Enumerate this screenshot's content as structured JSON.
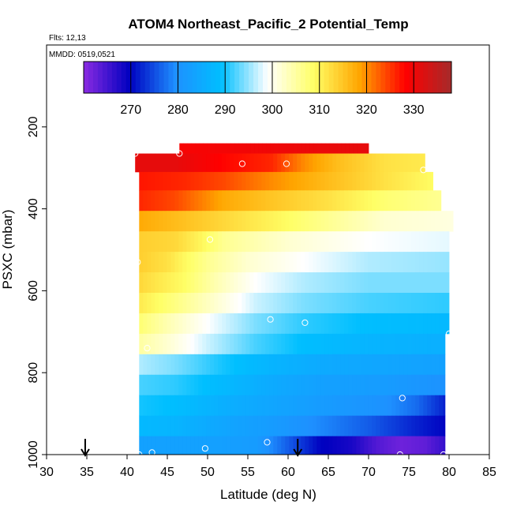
{
  "chart_data": {
    "type": "heatmap",
    "title": "ATOM4 Northeast_Pacific_2 Potential_Temp",
    "notes": [
      "Flts: 12,13",
      "MMDD: 0519,0521"
    ],
    "xlabel": "Latitude (deg N)",
    "ylabel": "PSXC (mbar)",
    "xlim": [
      30,
      85
    ],
    "ylim": [
      1000,
      0
    ],
    "x_ticks": [
      30,
      35,
      40,
      45,
      50,
      55,
      60,
      65,
      70,
      75,
      80,
      85
    ],
    "y_ticks": [
      200,
      400,
      600,
      800,
      1000
    ],
    "colorbar": {
      "range": [
        260,
        338
      ],
      "ticks": [
        270,
        280,
        290,
        300,
        310,
        320,
        330
      ],
      "colors": [
        "#8a2be2",
        "#0000c0",
        "#1e90ff",
        "#00bfff",
        "#ffffff",
        "#ffff66",
        "#ffa500",
        "#ff0000",
        "#a52a2a"
      ],
      "placement": "top inside plot"
    },
    "grid": false,
    "layers": [
      {
        "p_top": 240,
        "p_bot": 265,
        "x_start": 46.5,
        "x_end": 70,
        "values": [
          [
            46.5,
            329
          ],
          [
            70,
            331
          ]
        ]
      },
      {
        "p_top": 265,
        "p_bot": 310,
        "x_start": 41,
        "x_end": 77,
        "values": [
          [
            41,
            331
          ],
          [
            46,
            331
          ],
          [
            52,
            328
          ],
          [
            58,
            326
          ],
          [
            62,
            320
          ],
          [
            66,
            316
          ],
          [
            72,
            312
          ],
          [
            77,
            311
          ]
        ]
      },
      {
        "p_top": 310,
        "p_bot": 355,
        "x_start": 41.5,
        "x_end": 78,
        "values": [
          [
            41.5,
            327
          ],
          [
            47,
            326
          ],
          [
            52,
            324
          ],
          [
            58,
            320
          ],
          [
            65,
            316
          ],
          [
            72,
            312
          ],
          [
            78,
            309
          ]
        ]
      },
      {
        "p_top": 355,
        "p_bot": 405,
        "x_start": 41.5,
        "x_end": 79,
        "values": [
          [
            41.5,
            326
          ],
          [
            46,
            324
          ],
          [
            52,
            318
          ],
          [
            58,
            315
          ],
          [
            65,
            312
          ],
          [
            72,
            308
          ],
          [
            79,
            306
          ]
        ]
      },
      {
        "p_top": 405,
        "p_bot": 455,
        "x_start": 41.5,
        "x_end": 80.5,
        "values": [
          [
            41.5,
            318
          ],
          [
            46,
            316
          ],
          [
            52,
            313
          ],
          [
            58,
            310
          ],
          [
            65,
            306
          ],
          [
            72,
            302
          ],
          [
            80.5,
            301
          ]
        ]
      },
      {
        "p_top": 455,
        "p_bot": 505,
        "x_start": 41.5,
        "x_end": 80,
        "values": [
          [
            41.5,
            314
          ],
          [
            46,
            313
          ],
          [
            49,
            310
          ],
          [
            52,
            306
          ],
          [
            60,
            302
          ],
          [
            70,
            299
          ],
          [
            80,
            298
          ]
        ]
      },
      {
        "p_top": 505,
        "p_bot": 555,
        "x_start": 41.5,
        "x_end": 80,
        "values": [
          [
            41.5,
            314
          ],
          [
            45,
            312
          ],
          [
            50,
            306
          ],
          [
            55,
            302
          ],
          [
            62,
            299
          ],
          [
            70,
            296
          ],
          [
            80,
            295
          ]
        ]
      },
      {
        "p_top": 555,
        "p_bot": 605,
        "x_start": 41.5,
        "x_end": 80,
        "values": [
          [
            41.5,
            313
          ],
          [
            47,
            309
          ],
          [
            51,
            304
          ],
          [
            56,
            299
          ],
          [
            62,
            296
          ],
          [
            70,
            294
          ],
          [
            80,
            294
          ]
        ]
      },
      {
        "p_top": 605,
        "p_bot": 655,
        "x_start": 41.5,
        "x_end": 80,
        "values": [
          [
            41.5,
            311
          ],
          [
            46,
            307
          ],
          [
            51,
            302
          ],
          [
            56,
            297
          ],
          [
            62,
            294
          ],
          [
            70,
            292
          ],
          [
            80,
            291
          ]
        ]
      },
      {
        "p_top": 655,
        "p_bot": 705,
        "x_start": 41.5,
        "x_end": 80,
        "values": [
          [
            41.5,
            308
          ],
          [
            45,
            304
          ],
          [
            50,
            299
          ],
          [
            56,
            294
          ],
          [
            62,
            291
          ],
          [
            70,
            289
          ],
          [
            80,
            288
          ]
        ]
      },
      {
        "p_top": 705,
        "p_bot": 755,
        "x_start": 41.5,
        "x_end": 79.5,
        "values": [
          [
            41.5,
            305
          ],
          [
            45,
            302
          ],
          [
            50,
            297
          ],
          [
            56,
            292
          ],
          [
            62,
            289
          ],
          [
            70,
            287
          ],
          [
            79.5,
            286
          ]
        ]
      },
      {
        "p_top": 755,
        "p_bot": 805,
        "x_start": 41.5,
        "x_end": 79.5,
        "values": [
          [
            41.5,
            296
          ],
          [
            46,
            294
          ],
          [
            52,
            290
          ],
          [
            58,
            287
          ],
          [
            64,
            285
          ],
          [
            72,
            284
          ],
          [
            79.5,
            283
          ]
        ]
      },
      {
        "p_top": 805,
        "p_bot": 855,
        "x_start": 41.5,
        "x_end": 79.5,
        "values": [
          [
            41.5,
            292
          ],
          [
            46,
            291
          ],
          [
            52,
            288
          ],
          [
            58,
            285
          ],
          [
            64,
            283
          ],
          [
            72,
            282
          ],
          [
            79.5,
            280
          ]
        ]
      },
      {
        "p_top": 855,
        "p_bot": 905,
        "x_start": 41.5,
        "x_end": 79.5,
        "values": [
          [
            41.5,
            290
          ],
          [
            46,
            289
          ],
          [
            52,
            286
          ],
          [
            58,
            284
          ],
          [
            64,
            282
          ],
          [
            72,
            280
          ],
          [
            76,
            277
          ],
          [
            79.5,
            272
          ]
        ]
      },
      {
        "p_top": 905,
        "p_bot": 955,
        "x_start": 41.5,
        "x_end": 79.5,
        "values": [
          [
            41.5,
            288
          ],
          [
            46,
            287
          ],
          [
            52,
            284
          ],
          [
            58,
            282
          ],
          [
            64,
            279
          ],
          [
            70,
            276
          ],
          [
            76,
            272
          ],
          [
            79.5,
            270
          ]
        ]
      },
      {
        "p_top": 955,
        "p_bot": 1000,
        "x_start": 41.5,
        "x_end": 79.5,
        "values": [
          [
            41.5,
            283
          ],
          [
            50,
            283
          ],
          [
            56,
            282
          ],
          [
            60,
            276
          ],
          [
            64,
            270
          ],
          [
            68,
            268
          ],
          [
            71,
            264
          ],
          [
            74,
            262
          ],
          [
            77,
            263
          ],
          [
            79.5,
            266
          ]
        ]
      }
    ],
    "points": [
      [
        41,
        265
      ],
      [
        46.5,
        265
      ],
      [
        54.3,
        290
      ],
      [
        59.8,
        290
      ],
      [
        69.7,
        230
      ],
      [
        76.8,
        305
      ],
      [
        41.3,
        530
      ],
      [
        50.3,
        475
      ],
      [
        57.8,
        670
      ],
      [
        62.1,
        678
      ],
      [
        80,
        705
      ],
      [
        42.5,
        740
      ],
      [
        74.2,
        862
      ],
      [
        41.5,
        1000
      ],
      [
        43.1,
        995
      ],
      [
        49.7,
        985
      ],
      [
        57.4,
        970
      ],
      [
        73.9,
        1000
      ],
      [
        79.3,
        1000
      ]
    ],
    "arrows": [
      34.8,
      61.2
    ]
  }
}
